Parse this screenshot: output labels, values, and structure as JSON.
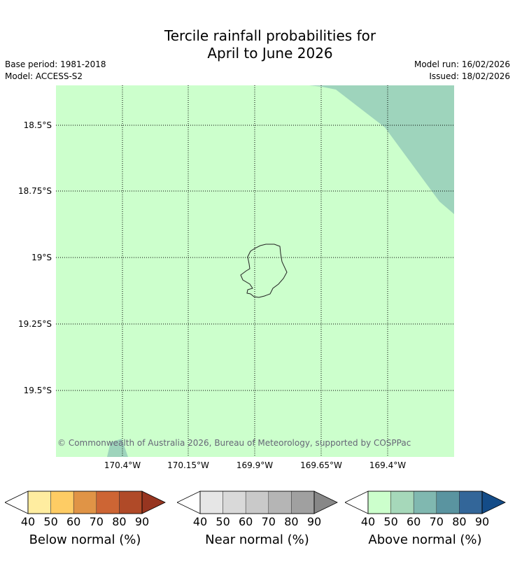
{
  "title_line1": "Tercile rainfall probabilities for",
  "title_line2": "April to June 2026",
  "base_period": "Base period: 1981-2018",
  "model": "Model: ACCESS-S2",
  "model_run": "Model run: 16/02/2026",
  "issued": "Issued: 18/02/2026",
  "lat_labels": [
    "18.5°S",
    "18.75°S",
    "19°S",
    "19.25°S",
    "19.5°S"
  ],
  "lon_labels": [
    "170.4°W",
    "170.15°W",
    "169.9°W",
    "169.65°W",
    "169.4°W"
  ],
  "copyright": "© Commonwealth of Australia 2026, Bureau of Meteorology, supported by COSPPac",
  "colors": {
    "above_40": "#ccffcc",
    "above_50": "#a6d8ba"
  },
  "colorbars": [
    {
      "title": "Below normal (%)",
      "ticks": [
        "40",
        "50",
        "60",
        "70",
        "80",
        "90"
      ],
      "colors": [
        "#ffeda0",
        "#fecc64",
        "#e09446",
        "#cd6534",
        "#b04a28",
        "#973520"
      ]
    },
    {
      "title": "Near normal (%)",
      "ticks": [
        "40",
        "50",
        "60",
        "70",
        "80",
        "90"
      ],
      "colors": [
        "#e6e6e6",
        "#d9d9d9",
        "#c9c9c9",
        "#b5b5b5",
        "#a0a0a0",
        "#878787"
      ]
    },
    {
      "title": "Above normal (%)",
      "ticks": [
        "40",
        "50",
        "60",
        "70",
        "80",
        "90"
      ],
      "colors": [
        "#ccffcc",
        "#a6d8ba",
        "#80b8b0",
        "#5a94a0",
        "#336699",
        "#144c88"
      ]
    }
  ]
}
